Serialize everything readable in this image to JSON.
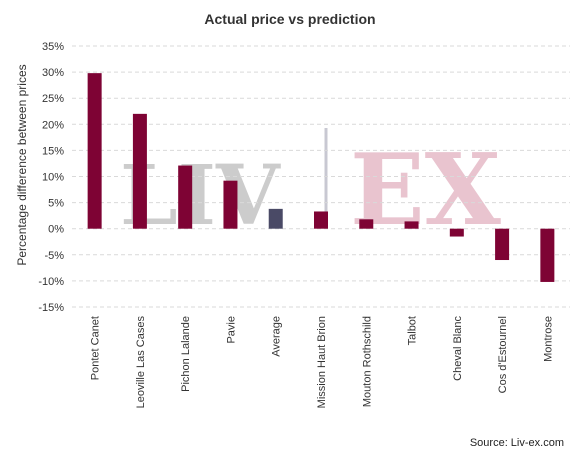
{
  "chart_data": {
    "type": "bar",
    "title": "Actual price vs prediction",
    "xlabel": "",
    "ylabel": "Percentage difference between prices",
    "ylim": [
      -15,
      35
    ],
    "ytick_step": 5,
    "ytick_suffix": "%",
    "grid": true,
    "categories": [
      "Pontet Canet",
      "Leoville Las Cases",
      "Pichon Lalande",
      "Pavie",
      "Average",
      "Mission Haut Brion",
      "Mouton Rothschild",
      "Talbot",
      "Cheval Blanc",
      "Cos d'Estournel",
      "Montrose"
    ],
    "values": [
      29.8,
      22.0,
      12.1,
      9.2,
      3.8,
      3.3,
      1.8,
      1.4,
      -1.5,
      -6.0,
      -10.2
    ],
    "highlight_category": "Average",
    "colors": {
      "bar": "#7e0334",
      "highlight": "#4a4a66"
    }
  },
  "watermark": {
    "left": "LIV",
    "right": "EX",
    "left_color": "#cccccc",
    "right_color": "#e9c4cf",
    "separator_color": "#c8c8d2"
  },
  "source": "Source: Liv-ex.com"
}
